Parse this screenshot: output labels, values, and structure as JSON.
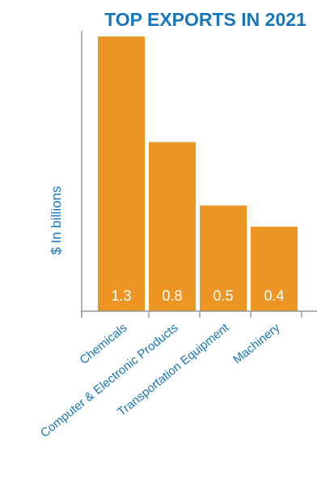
{
  "chart_data": {
    "type": "bar",
    "title": "TOP EXPORTS IN 2021",
    "xlabel": "",
    "ylabel": "$ In billions",
    "categories": [
      "Chemicals",
      "Computer & Electronic Products",
      "Transportation Equipment",
      "Machinery"
    ],
    "values": [
      1.3,
      0.8,
      0.5,
      0.4
    ],
    "value_labels": [
      "1.3",
      "0.8",
      "0.5",
      "0.4"
    ],
    "ylim": [
      0,
      1.3
    ],
    "grid": false,
    "legend": "none",
    "colors": {
      "bar": "#ED9522",
      "title": "#1876BA",
      "ylabel": "#1876BA",
      "axis": "#9A9A9A",
      "category_label": "#1876BA",
      "value_label": "#FFFFFF"
    }
  }
}
